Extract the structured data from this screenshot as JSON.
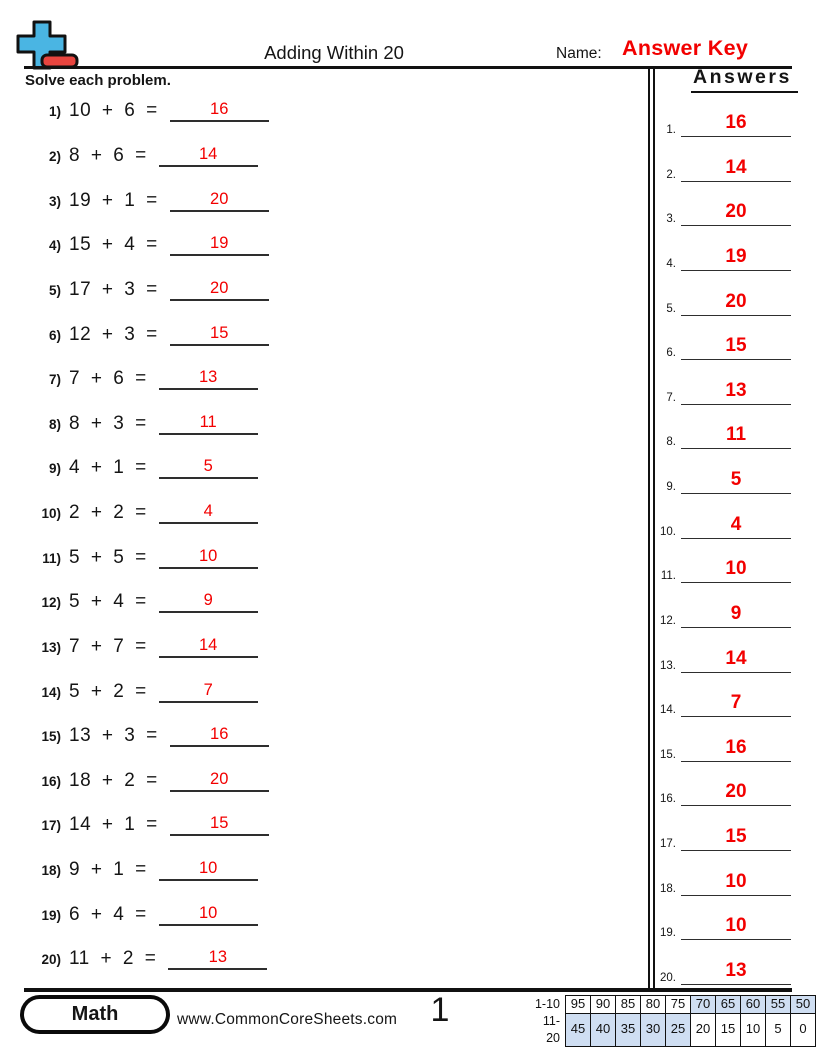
{
  "header": {
    "title": "Adding Within 20",
    "name_label": "Name:",
    "answer_key_label": "Answer Key"
  },
  "instructions": "Solve each problem.",
  "problems": [
    {
      "label": "1)",
      "expression": "10 + 6 =",
      "answer": "16"
    },
    {
      "label": "2)",
      "expression": "8 + 6 =",
      "answer": "14"
    },
    {
      "label": "3)",
      "expression": "19 + 1 =",
      "answer": "20"
    },
    {
      "label": "4)",
      "expression": "15 + 4 =",
      "answer": "19"
    },
    {
      "label": "5)",
      "expression": "17 + 3 =",
      "answer": "20"
    },
    {
      "label": "6)",
      "expression": "12 + 3 =",
      "answer": "15"
    },
    {
      "label": "7)",
      "expression": "7 + 6 =",
      "answer": "13"
    },
    {
      "label": "8)",
      "expression": "8 + 3 =",
      "answer": "11"
    },
    {
      "label": "9)",
      "expression": "4 + 1 =",
      "answer": "5"
    },
    {
      "label": "10)",
      "expression": "2 + 2 =",
      "answer": "4"
    },
    {
      "label": "11)",
      "expression": "5 + 5 =",
      "answer": "10"
    },
    {
      "label": "12)",
      "expression": "5 + 4 =",
      "answer": "9"
    },
    {
      "label": "13)",
      "expression": "7 + 7 =",
      "answer": "14"
    },
    {
      "label": "14)",
      "expression": "5 + 2 =",
      "answer": "7"
    },
    {
      "label": "15)",
      "expression": "13 + 3 =",
      "answer": "16"
    },
    {
      "label": "16)",
      "expression": "18 + 2 =",
      "answer": "20"
    },
    {
      "label": "17)",
      "expression": "14 + 1 =",
      "answer": "15"
    },
    {
      "label": "18)",
      "expression": "9 + 1 =",
      "answer": "10"
    },
    {
      "label": "19)",
      "expression": "6 + 4 =",
      "answer": "10"
    },
    {
      "label": "20)",
      "expression": "11 + 2 =",
      "answer": "13"
    }
  ],
  "answers_panel": {
    "heading": "Answers",
    "items": [
      {
        "label": "1.",
        "value": "16"
      },
      {
        "label": "2.",
        "value": "14"
      },
      {
        "label": "3.",
        "value": "20"
      },
      {
        "label": "4.",
        "value": "19"
      },
      {
        "label": "5.",
        "value": "20"
      },
      {
        "label": "6.",
        "value": "15"
      },
      {
        "label": "7.",
        "value": "13"
      },
      {
        "label": "8.",
        "value": "11"
      },
      {
        "label": "9.",
        "value": "5"
      },
      {
        "label": "10.",
        "value": "4"
      },
      {
        "label": "11.",
        "value": "10"
      },
      {
        "label": "12.",
        "value": "9"
      },
      {
        "label": "13.",
        "value": "14"
      },
      {
        "label": "14.",
        "value": "7"
      },
      {
        "label": "15.",
        "value": "16"
      },
      {
        "label": "16.",
        "value": "20"
      },
      {
        "label": "17.",
        "value": "15"
      },
      {
        "label": "18.",
        "value": "10"
      },
      {
        "label": "19.",
        "value": "10"
      },
      {
        "label": "20.",
        "value": "13"
      }
    ]
  },
  "footer": {
    "subject": "Math",
    "website": "www.CommonCoreSheets.com",
    "page_number": "1",
    "score_table": {
      "rows": [
        {
          "label": "1-10",
          "cells": [
            {
              "v": "95",
              "shaded": false
            },
            {
              "v": "90",
              "shaded": false
            },
            {
              "v": "85",
              "shaded": false
            },
            {
              "v": "80",
              "shaded": false
            },
            {
              "v": "75",
              "shaded": false
            },
            {
              "v": "70",
              "shaded": true
            },
            {
              "v": "65",
              "shaded": true
            },
            {
              "v": "60",
              "shaded": true
            },
            {
              "v": "55",
              "shaded": true
            },
            {
              "v": "50",
              "shaded": true
            }
          ]
        },
        {
          "label": "11-20",
          "cells": [
            {
              "v": "45",
              "shaded": true
            },
            {
              "v": "40",
              "shaded": true
            },
            {
              "v": "35",
              "shaded": true
            },
            {
              "v": "30",
              "shaded": true
            },
            {
              "v": "25",
              "shaded": true
            },
            {
              "v": "20",
              "shaded": false
            },
            {
              "v": "15",
              "shaded": false
            },
            {
              "v": "10",
              "shaded": false
            },
            {
              "v": "5",
              "shaded": false
            },
            {
              "v": "0",
              "shaded": false
            }
          ]
        }
      ]
    }
  },
  "colors": {
    "answer_red": "#f20000",
    "shaded_cell_blue": "#cfdef2",
    "logo_blue": "#4ab5e3",
    "logo_red": "#e8453f"
  }
}
